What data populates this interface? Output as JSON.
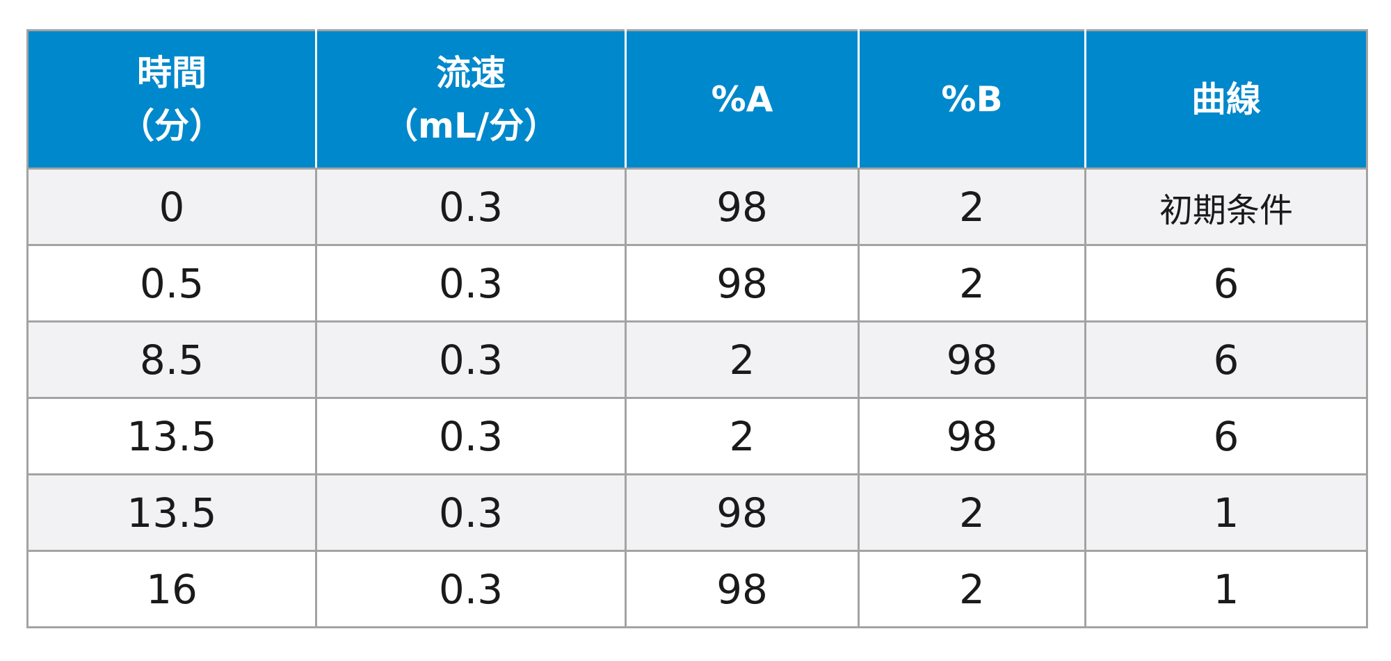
{
  "table": {
    "headers": [
      {
        "line1": "時間",
        "line2": "（分）"
      },
      {
        "line1": "流速",
        "line2": "（mL/分）"
      },
      {
        "line1": "%A",
        "line2": ""
      },
      {
        "line1": "%B",
        "line2": ""
      },
      {
        "line1": "曲線",
        "line2": ""
      }
    ],
    "rows": [
      [
        "0",
        "0.3",
        "98",
        "2",
        "初期条件"
      ],
      [
        "0.5",
        "0.3",
        "98",
        "2",
        "6"
      ],
      [
        "8.5",
        "0.3",
        "2",
        "98",
        "6"
      ],
      [
        "13.5",
        "0.3",
        "2",
        "98",
        "6"
      ],
      [
        "13.5",
        "0.3",
        "98",
        "2",
        "1"
      ],
      [
        "16",
        "0.3",
        "98",
        "2",
        "1"
      ]
    ]
  },
  "colors": {
    "header_bg": "#0088cc",
    "header_text": "#ffffff",
    "row_alt_bg": "#f2f2f4",
    "grid": "#a3a3a3"
  }
}
